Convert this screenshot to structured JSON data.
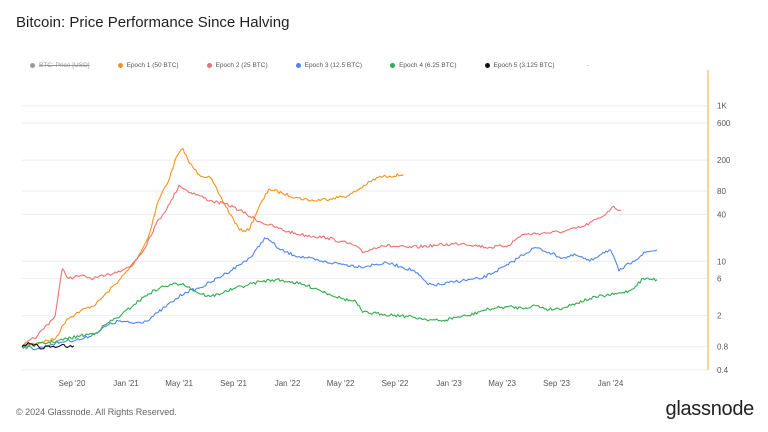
{
  "title": "Bitcoin: Price Performance Since Halving",
  "footer": "© 2024 Glassnode. All Rights Reserved.",
  "logo": "glassnode",
  "legend": [
    {
      "label": "BTC: Price [USD]",
      "color": "#999999",
      "disabled": true
    },
    {
      "label": "Epoch 1 (50 BTC)",
      "color": "#f7931a"
    },
    {
      "label": "Epoch 2 (25 BTC)",
      "color": "#f07070"
    },
    {
      "label": "Epoch 3 (12.5 BTC)",
      "color": "#4f86f0"
    },
    {
      "label": "Epoch 4 (6.25 BTC)",
      "color": "#2eae4a"
    },
    {
      "label": "Epoch 5 (3.125 BTC)",
      "color": "#111111"
    }
  ],
  "legend_extra": "-",
  "chart_data": {
    "type": "line",
    "yscale": "log",
    "ylim": [
      0.4,
      1500
    ],
    "xlim": [
      "2020-05-11",
      "2024-08-06"
    ],
    "x_ticks": [
      "Sep '20",
      "Jan '21",
      "May '21",
      "Sep '21",
      "Jan '22",
      "May '22",
      "Sep '22",
      "Jan '23",
      "May '23",
      "Sep '23",
      "Jan '24"
    ],
    "x_tick_dates": [
      "2020-09-01",
      "2021-01-01",
      "2021-05-01",
      "2021-09-01",
      "2022-01-01",
      "2022-05-01",
      "2022-09-01",
      "2023-01-01",
      "2023-05-01",
      "2023-09-01",
      "2024-01-01"
    ],
    "y_ticks": [
      0.4,
      0.8,
      2,
      6,
      10,
      40,
      80,
      200,
      600,
      1000
    ],
    "y_tick_labels": [
      "0.4",
      "0.8",
      "2",
      "6",
      "10",
      "40",
      "80",
      "200",
      "600",
      "1K"
    ],
    "grid": true,
    "legend_position": "top-left",
    "series": [
      {
        "name": "Epoch 1 (50 BTC)",
        "color": "#f7931a",
        "points": [
          [
            "2020-05-11",
            0.8
          ],
          [
            "2020-06-15",
            0.9
          ],
          [
            "2020-07-25",
            1.0
          ],
          [
            "2020-08-20",
            1.8
          ],
          [
            "2020-09-20",
            2.3
          ],
          [
            "2020-10-25",
            2.8
          ],
          [
            "2020-11-20",
            4.0
          ],
          [
            "2020-12-20",
            6.0
          ],
          [
            "2021-01-20",
            9.5
          ],
          [
            "2021-02-20",
            20
          ],
          [
            "2021-03-15",
            60
          ],
          [
            "2021-04-10",
            120
          ],
          [
            "2021-04-25",
            220
          ],
          [
            "2021-05-10",
            280
          ],
          [
            "2021-05-25",
            180
          ],
          [
            "2021-06-15",
            130
          ],
          [
            "2021-07-10",
            120
          ],
          [
            "2021-08-01",
            70
          ],
          [
            "2021-08-25",
            40
          ],
          [
            "2021-09-15",
            25
          ],
          [
            "2021-10-05",
            25
          ],
          [
            "2021-10-25",
            45
          ],
          [
            "2021-11-20",
            85
          ],
          [
            "2021-12-20",
            75
          ],
          [
            "2022-01-25",
            65
          ],
          [
            "2022-03-01",
            60
          ],
          [
            "2022-04-15",
            65
          ],
          [
            "2022-05-20",
            70
          ],
          [
            "2022-06-25",
            95
          ],
          [
            "2022-07-25",
            120
          ],
          [
            "2022-08-20",
            125
          ],
          [
            "2022-09-20",
            130
          ]
        ]
      },
      {
        "name": "Epoch 2 (25 BTC)",
        "color": "#f07070",
        "points": [
          [
            "2020-05-11",
            0.8
          ],
          [
            "2020-06-15",
            1.1
          ],
          [
            "2020-07-25",
            2.0
          ],
          [
            "2020-08-10",
            8.0
          ],
          [
            "2020-08-25",
            6.0
          ],
          [
            "2020-09-20",
            6.5
          ],
          [
            "2020-10-20",
            6.0
          ],
          [
            "2020-11-15",
            6.5
          ],
          [
            "2020-12-15",
            7.5
          ],
          [
            "2021-01-10",
            8.5
          ],
          [
            "2021-02-10",
            14
          ],
          [
            "2021-03-10",
            30
          ],
          [
            "2021-04-10",
            55
          ],
          [
            "2021-05-01",
            95
          ],
          [
            "2021-05-20",
            80
          ],
          [
            "2021-06-15",
            70
          ],
          [
            "2021-07-10",
            60
          ],
          [
            "2021-08-10",
            55
          ],
          [
            "2021-09-01",
            50
          ],
          [
            "2021-10-01",
            40
          ],
          [
            "2021-11-01",
            32
          ],
          [
            "2021-12-01",
            28
          ],
          [
            "2022-01-01",
            24
          ],
          [
            "2022-02-01",
            22
          ],
          [
            "2022-03-01",
            21
          ],
          [
            "2022-04-01",
            20
          ],
          [
            "2022-05-01",
            18
          ],
          [
            "2022-06-01",
            16
          ],
          [
            "2022-06-20",
            13
          ],
          [
            "2022-08-01",
            16
          ],
          [
            "2022-10-01",
            15
          ],
          [
            "2022-12-01",
            16
          ],
          [
            "2023-02-01",
            17
          ],
          [
            "2023-04-01",
            15
          ],
          [
            "2023-05-15",
            16
          ],
          [
            "2023-06-15",
            22
          ],
          [
            "2023-08-01",
            23
          ],
          [
            "2023-09-15",
            24
          ],
          [
            "2023-11-01",
            28
          ],
          [
            "2023-12-15",
            38
          ],
          [
            "2024-01-05",
            50
          ],
          [
            "2024-01-25",
            45
          ]
        ]
      },
      {
        "name": "Epoch 3 (12.5 BTC)",
        "color": "#4f86f0",
        "points": [
          [
            "2020-05-11",
            0.8
          ],
          [
            "2020-06-15",
            0.75
          ],
          [
            "2020-07-15",
            0.85
          ],
          [
            "2020-08-20",
            0.95
          ],
          [
            "2020-09-25",
            1.0
          ],
          [
            "2020-10-25",
            1.2
          ],
          [
            "2020-11-20",
            1.5
          ],
          [
            "2020-12-15",
            1.7
          ],
          [
            "2021-01-15",
            1.6
          ],
          [
            "2021-02-15",
            1.7
          ],
          [
            "2021-03-15",
            2.2
          ],
          [
            "2021-04-15",
            3.0
          ],
          [
            "2021-05-15",
            4.0
          ],
          [
            "2021-06-15",
            4.5
          ],
          [
            "2021-07-15",
            5.5
          ],
          [
            "2021-08-15",
            7.0
          ],
          [
            "2021-09-15",
            9.0
          ],
          [
            "2021-10-15",
            12
          ],
          [
            "2021-11-10",
            20
          ],
          [
            "2021-11-25",
            18
          ],
          [
            "2021-12-15",
            14
          ],
          [
            "2022-01-15",
            12
          ],
          [
            "2022-02-15",
            11
          ],
          [
            "2022-03-15",
            10
          ],
          [
            "2022-04-15",
            9.5
          ],
          [
            "2022-05-15",
            9.0
          ],
          [
            "2022-06-15",
            8.5
          ],
          [
            "2022-07-15",
            9.0
          ],
          [
            "2022-08-15",
            9.5
          ],
          [
            "2022-09-15",
            8.5
          ],
          [
            "2022-10-15",
            7.5
          ],
          [
            "2022-11-15",
            5.0
          ],
          [
            "2022-12-15",
            5.0
          ],
          [
            "2023-01-15",
            5.5
          ],
          [
            "2023-03-15",
            6.0
          ],
          [
            "2023-05-15",
            9.0
          ],
          [
            "2023-06-15",
            12
          ],
          [
            "2023-07-15",
            15
          ],
          [
            "2023-08-15",
            13
          ],
          [
            "2023-09-15",
            11
          ],
          [
            "2023-10-15",
            12
          ],
          [
            "2023-11-15",
            10
          ],
          [
            "2023-12-15",
            13
          ],
          [
            "2024-01-01",
            14
          ],
          [
            "2024-01-20",
            7.5
          ],
          [
            "2024-02-20",
            10
          ],
          [
            "2024-03-20",
            13
          ],
          [
            "2024-04-15",
            14
          ]
        ]
      },
      {
        "name": "Epoch 4 (6.25 BTC)",
        "color": "#2eae4a",
        "points": [
          [
            "2020-05-11",
            0.8
          ],
          [
            "2020-06-15",
            0.85
          ],
          [
            "2020-08-01",
            0.95
          ],
          [
            "2020-09-20",
            1.1
          ],
          [
            "2020-10-25",
            1.2
          ],
          [
            "2020-11-20",
            1.6
          ],
          [
            "2020-12-20",
            2.0
          ],
          [
            "2021-01-20",
            2.8
          ],
          [
            "2021-02-20",
            3.8
          ],
          [
            "2021-03-20",
            4.6
          ],
          [
            "2021-04-15",
            5.0
          ],
          [
            "2021-05-10",
            5.2
          ],
          [
            "2021-06-10",
            4.0
          ],
          [
            "2021-07-10",
            3.5
          ],
          [
            "2021-08-10",
            4.0
          ],
          [
            "2021-09-05",
            4.5
          ],
          [
            "2021-10-05",
            5.0
          ],
          [
            "2021-11-01",
            5.5
          ],
          [
            "2021-12-05",
            5.8
          ],
          [
            "2022-01-05",
            5.5
          ],
          [
            "2022-02-05",
            5.0
          ],
          [
            "2022-03-05",
            4.5
          ],
          [
            "2022-04-05",
            3.8
          ],
          [
            "2022-05-05",
            3.3
          ],
          [
            "2022-06-05",
            3.0
          ],
          [
            "2022-06-20",
            2.2
          ],
          [
            "2022-08-01",
            2.1
          ],
          [
            "2022-09-15",
            2.0
          ],
          [
            "2022-10-15",
            1.9
          ],
          [
            "2022-11-10",
            1.8
          ],
          [
            "2022-12-15",
            1.7
          ],
          [
            "2023-01-15",
            1.9
          ],
          [
            "2023-02-15",
            2.0
          ],
          [
            "2023-03-15",
            2.3
          ],
          [
            "2023-04-15",
            2.5
          ],
          [
            "2023-05-15",
            2.6
          ],
          [
            "2023-06-15",
            2.5
          ],
          [
            "2023-07-15",
            2.7
          ],
          [
            "2023-08-15",
            2.4
          ],
          [
            "2023-09-15",
            2.5
          ],
          [
            "2023-10-15",
            2.9
          ],
          [
            "2023-11-15",
            3.3
          ],
          [
            "2023-12-15",
            3.6
          ],
          [
            "2024-01-15",
            3.8
          ],
          [
            "2024-02-15",
            4.2
          ],
          [
            "2024-03-15",
            6.0
          ],
          [
            "2024-04-15",
            5.8
          ]
        ]
      },
      {
        "name": "Epoch 5 (3.125 BTC)",
        "color": "#111111",
        "points": [
          [
            "2020-05-11",
            0.8
          ],
          [
            "2020-05-25",
            0.9
          ],
          [
            "2020-06-10",
            0.85
          ],
          [
            "2020-06-25",
            0.75
          ],
          [
            "2020-07-10",
            0.82
          ],
          [
            "2020-07-25",
            0.78
          ],
          [
            "2020-08-10",
            0.85
          ],
          [
            "2020-08-25",
            0.8
          ],
          [
            "2020-09-05",
            0.82
          ]
        ]
      }
    ]
  }
}
